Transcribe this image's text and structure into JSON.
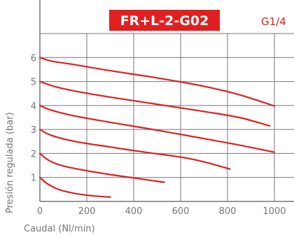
{
  "chart_data": {
    "type": "line",
    "title": "FR+L-2-G02",
    "subtitle": "G1/4",
    "xlabel": "Caudal (Nl/min)",
    "ylabel": "Presión regulada (bar)",
    "xlim": [
      0,
      1000
    ],
    "ylim": [
      0,
      7
    ],
    "x_ticks": [
      "0",
      "200",
      "400",
      "600",
      "800",
      "1000"
    ],
    "y_ticks": [
      "1",
      "2",
      "3",
      "4",
      "5",
      "6"
    ],
    "grid": true,
    "series": [
      {
        "x": [
          0,
          30,
          80,
          150,
          220,
          300
        ],
        "y": [
          1.0,
          0.75,
          0.5,
          0.33,
          0.24,
          0.18
        ]
      },
      {
        "x": [
          0,
          40,
          100,
          200,
          300,
          400,
          530
        ],
        "y": [
          2.0,
          1.7,
          1.48,
          1.28,
          1.12,
          0.98,
          0.8
        ]
      },
      {
        "x": [
          0,
          50,
          150,
          300,
          450,
          600,
          700,
          810
        ],
        "y": [
          3.0,
          2.75,
          2.5,
          2.27,
          2.05,
          1.85,
          1.65,
          1.35
        ]
      },
      {
        "x": [
          0,
          50,
          150,
          300,
          500,
          700,
          850,
          1000
        ],
        "y": [
          4.0,
          3.8,
          3.56,
          3.3,
          2.97,
          2.62,
          2.35,
          2.05
        ]
      },
      {
        "x": [
          0,
          60,
          150,
          300,
          500,
          700,
          850,
          980
        ],
        "y": [
          5.0,
          4.8,
          4.6,
          4.35,
          4.05,
          3.75,
          3.5,
          3.15
        ]
      },
      {
        "x": [
          0,
          50,
          150,
          300,
          500,
          700,
          850,
          1000
        ],
        "y": [
          6.0,
          5.85,
          5.7,
          5.45,
          5.15,
          4.8,
          4.45,
          3.98
        ]
      }
    ],
    "colors": {
      "line": "#e02020",
      "grid": "#777777",
      "title_bg": "#e02020"
    }
  }
}
